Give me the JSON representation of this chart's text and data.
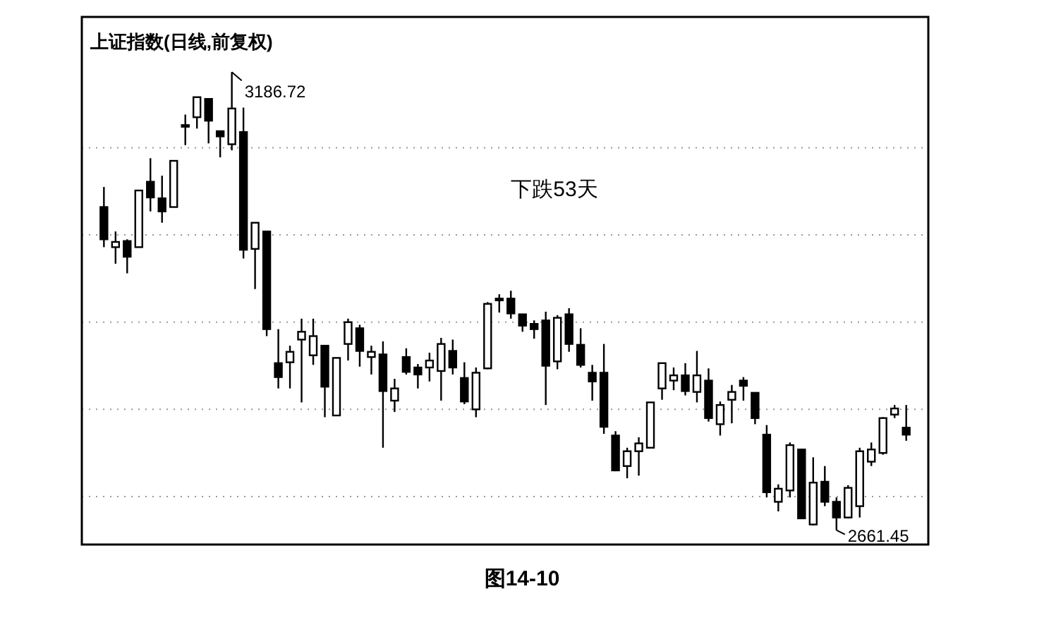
{
  "chart_data": {
    "type": "candlestick",
    "title": "上证指数(日线,前复权)",
    "categories": [
      null,
      null,
      null,
      null,
      null,
      null,
      null,
      null,
      null,
      null,
      null,
      null,
      null,
      null,
      null,
      null,
      null,
      null,
      null,
      null,
      null,
      null,
      null,
      null,
      null,
      null,
      null,
      null,
      null,
      null,
      null,
      null,
      null,
      null,
      null,
      null,
      null,
      null,
      null,
      null,
      null,
      null,
      null,
      null,
      null,
      null,
      null,
      null,
      null,
      null,
      null,
      null,
      null,
      null,
      null,
      null,
      null,
      null,
      null,
      null,
      null,
      null,
      null,
      null,
      null,
      null,
      null,
      null,
      null,
      null
    ],
    "ohlc": [
      [
        3032,
        3055,
        2986,
        2995
      ],
      [
        2986,
        3004,
        2967,
        2992
      ],
      [
        2993,
        2995,
        2956,
        2975
      ],
      [
        2986,
        3051,
        2986,
        3051
      ],
      [
        3061,
        3088,
        3027,
        3043
      ],
      [
        3042,
        3068,
        3014,
        3027
      ],
      [
        3032,
        3085,
        3032,
        3085
      ],
      [
        3126,
        3138,
        3103,
        3126
      ],
      [
        3135,
        3158,
        3122,
        3158
      ],
      [
        3156,
        3156,
        3105,
        3131
      ],
      [
        3119,
        3119,
        3089,
        3113
      ],
      [
        3104,
        3186.72,
        3097,
        3145
      ],
      [
        3118,
        3146,
        2973,
        2983
      ],
      [
        2984,
        3014,
        2938,
        3014
      ],
      [
        3004,
        3004,
        2884,
        2892
      ],
      [
        2853,
        2892,
        2824,
        2837
      ],
      [
        2854,
        2873,
        2824,
        2866
      ],
      [
        2880,
        2904,
        2808,
        2889
      ],
      [
        2862,
        2904,
        2851,
        2884
      ],
      [
        2873,
        2873,
        2791,
        2826
      ],
      [
        2793,
        2859,
        2793,
        2859
      ],
      [
        2875,
        2904,
        2856,
        2900
      ],
      [
        2893,
        2897,
        2849,
        2867
      ],
      [
        2860,
        2873,
        2840,
        2866
      ],
      [
        2863,
        2878,
        2756,
        2821
      ],
      [
        2810,
        2835,
        2797,
        2824
      ],
      [
        2860,
        2870,
        2840,
        2843
      ],
      [
        2848,
        2852,
        2824,
        2840
      ],
      [
        2848,
        2865,
        2832,
        2856
      ],
      [
        2844,
        2882,
        2810,
        2875
      ],
      [
        2867,
        2880,
        2840,
        2848
      ],
      [
        2836,
        2854,
        2806,
        2809
      ],
      [
        2800,
        2848,
        2791,
        2842
      ],
      [
        2847,
        2923,
        2846,
        2921
      ],
      [
        2927,
        2932,
        2911,
        2925
      ],
      [
        2927,
        2936,
        2904,
        2910
      ],
      [
        2909,
        2909,
        2889,
        2896
      ],
      [
        2898,
        2902,
        2881,
        2892
      ],
      [
        2902,
        2912,
        2805,
        2850
      ],
      [
        2855,
        2908,
        2846,
        2905
      ],
      [
        2909,
        2916,
        2866,
        2875
      ],
      [
        2874,
        2893,
        2848,
        2851
      ],
      [
        2842,
        2851,
        2810,
        2832
      ],
      [
        2842,
        2875,
        2772,
        2780
      ],
      [
        2770,
        2775,
        2729,
        2730
      ],
      [
        2735,
        2756,
        2721,
        2752
      ],
      [
        2752,
        2768,
        2724,
        2761
      ],
      [
        2756,
        2808,
        2756,
        2808
      ],
      [
        2824,
        2853,
        2811,
        2853
      ],
      [
        2833,
        2848,
        2822,
        2839
      ],
      [
        2839,
        2853,
        2816,
        2821
      ],
      [
        2820,
        2867,
        2808,
        2839
      ],
      [
        2833,
        2847,
        2786,
        2790
      ],
      [
        2783,
        2809,
        2770,
        2805
      ],
      [
        2811,
        2828,
        2784,
        2820
      ],
      [
        2833,
        2837,
        2810,
        2827
      ],
      [
        2819,
        2819,
        2783,
        2790
      ],
      [
        2771,
        2782,
        2699,
        2705
      ],
      [
        2694,
        2714,
        2683,
        2709
      ],
      [
        2707,
        2762,
        2699,
        2759
      ],
      [
        2754,
        2754,
        2675,
        2675
      ],
      [
        2668,
        2745,
        2667,
        2716
      ],
      [
        2717,
        2735,
        2689,
        2694
      ],
      [
        2694,
        2699,
        2661.45,
        2676
      ],
      [
        2676,
        2713,
        2675,
        2710
      ],
      [
        2689,
        2756,
        2676,
        2752
      ],
      [
        2740,
        2762,
        2735,
        2754
      ],
      [
        2750,
        2791,
        2748,
        2790
      ],
      [
        2794,
        2805,
        2790,
        2801
      ],
      [
        2779,
        2805,
        2764,
        2771
      ]
    ],
    "ylim": [
      2645,
      3250
    ],
    "yticks": [
      {
        "value": 2700,
        "label": null
      },
      {
        "value": 2800,
        "label": null
      },
      {
        "value": 2900,
        "label": null
      },
      {
        "value": 3000,
        "label": null
      },
      {
        "value": 3100,
        "label": null
      }
    ],
    "grid": "y",
    "annotations": [
      "3186.72",
      "2661.45",
      "下跌53天",
      "图14-10"
    ]
  }
}
